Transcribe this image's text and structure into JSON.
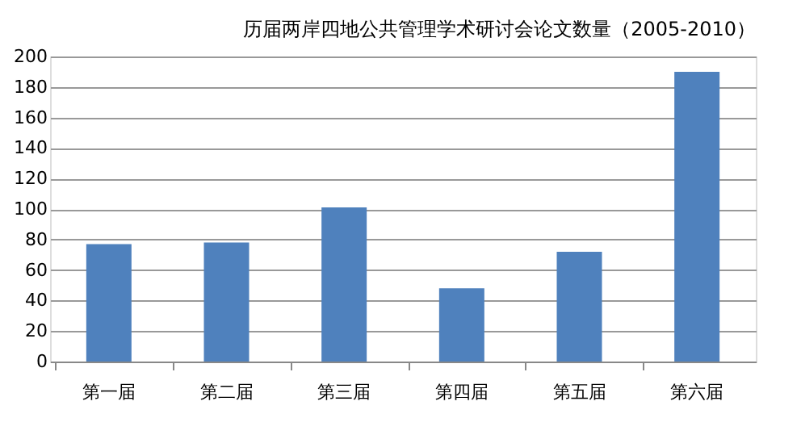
{
  "chart_data": {
    "type": "bar",
    "title": "历届两岸四地公共管理学术研讨会论文数量（2005-2010）",
    "categories": [
      "第一届",
      "第二届",
      "第三届",
      "第四届",
      "第五届",
      "第六届"
    ],
    "values": [
      77,
      78,
      101,
      48,
      72,
      190
    ],
    "color": "#4f81bd",
    "ylim": [
      0,
      200
    ],
    "yticks": [
      0,
      20,
      40,
      60,
      80,
      100,
      120,
      140,
      160,
      180,
      200
    ],
    "grid": "y"
  }
}
